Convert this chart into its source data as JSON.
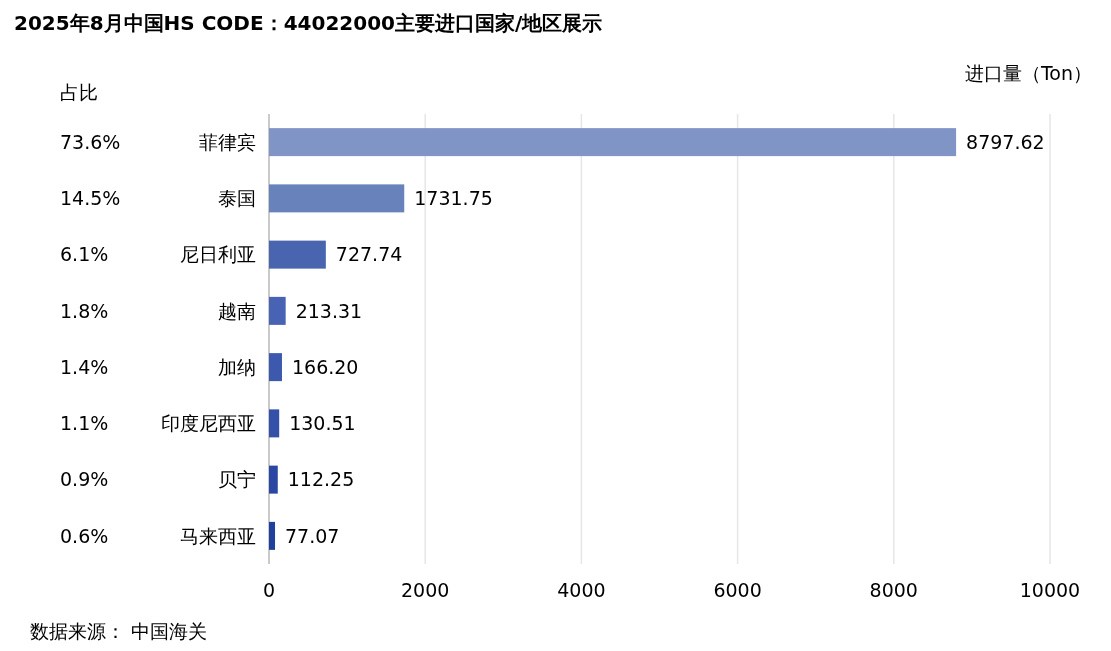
{
  "chart_data": {
    "type": "bar",
    "orientation": "horizontal",
    "title": "2025年8月中国HS CODE：44022000主要进口国家/地区展示",
    "xlabel": "进口量（Ton）",
    "ylabel": "占比",
    "categories": [
      "菲律宾",
      "泰国",
      "尼日利亚",
      "越南",
      "加纳",
      "印度尼西亚",
      "贝宁",
      "马来西亚"
    ],
    "values": [
      8797.62,
      1731.75,
      727.74,
      213.31,
      166.2,
      130.51,
      112.25,
      77.07
    ],
    "value_labels": [
      "8797.62",
      "1731.75",
      "727.74",
      "213.31",
      "166.20",
      "130.51",
      "112.25",
      "77.07"
    ],
    "colors": [
      "#8095c5",
      "#6883bb",
      "#4a65b0",
      "#4862b4",
      "#3d59ae",
      "#3450a8",
      "#2a48a3",
      "#213f9c"
    ],
    "xlim": [
      0,
      10000
    ],
    "xticks": [
      0,
      2000,
      4000,
      6000,
      8000,
      10000
    ],
    "grid": "x",
    "annotations": [
      "73.6%",
      "14.5%",
      "6.1%",
      "1.8%",
      "1.4%",
      "1.1%",
      "0.9%",
      "0.6%",
      "数据来源： 中国海关"
    ]
  }
}
